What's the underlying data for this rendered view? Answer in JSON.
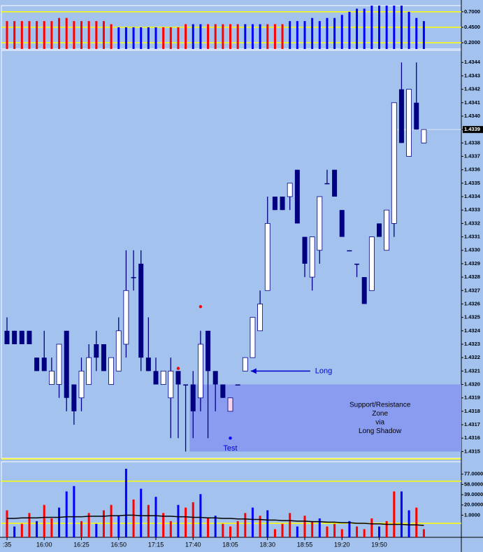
{
  "chart_data": [
    {
      "type": "bar",
      "ylim": [
        0.1,
        0.8
      ],
      "yticks": [
        {
          "value": 0.7,
          "label": "0.7000"
        },
        {
          "value": 0.45,
          "label": "0.4500"
        },
        {
          "value": 0.2,
          "label": "0.2000"
        }
      ],
      "grid_color": "#ffff00",
      "values": [
        0.55,
        0.55,
        0.55,
        0.55,
        0.55,
        0.55,
        0.55,
        0.6,
        0.6,
        0.55,
        0.55,
        0.55,
        0.55,
        0.55,
        0.5,
        0.45,
        0.45,
        0.45,
        0.45,
        0.45,
        0.45,
        0.45,
        0.45,
        0.45,
        0.5,
        0.5,
        0.5,
        0.5,
        0.5,
        0.5,
        0.5,
        0.5,
        0.5,
        0.5,
        0.5,
        0.5,
        0.5,
        0.5,
        0.55,
        0.55,
        0.55,
        0.6,
        0.55,
        0.6,
        0.6,
        0.65,
        0.7,
        0.75,
        0.75,
        0.8,
        0.8,
        0.8,
        0.8,
        0.8,
        0.7,
        0.6,
        0.55
      ],
      "colors": [
        "#ff0000",
        "#ff0000",
        "#ff0000",
        "#ff0000",
        "#ff0000",
        "#ff0000",
        "#ff0000",
        "#ff0000",
        "#ff0000",
        "#ff0000",
        "#ff0000",
        "#ff0000",
        "#ff0000",
        "#ff0000",
        "#ff0000",
        "#0000ff",
        "#0000ff",
        "#0000ff",
        "#0000ff",
        "#0000ff",
        "#0000ff",
        "#ff0000",
        "#ff0000",
        "#ff0000",
        "#ff0000",
        "#0000ff",
        "#0000ff",
        "#ff0000",
        "#ff0000",
        "#ff0000",
        "#ff0000",
        "#ff0000",
        "#0000ff",
        "#0000ff",
        "#0000ff",
        "#ff0000",
        "#ff0000",
        "#ff0000",
        "#0000ff",
        "#0000ff",
        "#0000ff",
        "#0000ff",
        "#0000ff",
        "#0000ff",
        "#0000ff",
        "#0000ff",
        "#0000ff",
        "#0000ff",
        "#0000ff",
        "#0000ff",
        "#0000ff",
        "#0000ff",
        "#0000ff",
        "#0000ff",
        "#0000ff",
        "#0000ff",
        "#0000ff"
      ]
    },
    {
      "type": "candlestick",
      "ylim": [
        1.43145,
        1.43449
      ],
      "yticks": [
        1.4344,
        1.4343,
        1.4342,
        1.4341,
        {
          "value": 1.434,
          "label": "1.4340"
        },
        1.4339,
        1.4338,
        1.4337,
        1.4336,
        1.4335,
        1.4334,
        1.4333,
        1.4332,
        1.4331,
        {
          "value": 1.433,
          "label": "1.4330"
        },
        1.4329,
        1.4328,
        1.4327,
        1.4326,
        1.4325,
        1.4324,
        1.4323,
        1.4322,
        1.4321,
        {
          "value": 1.432,
          "label": "1.4320"
        },
        1.4319,
        1.4318,
        1.4317,
        1.4316,
        1.4315
      ],
      "last_price": 1.4339,
      "up_color": "#ffffff",
      "down_color": "#000080",
      "categories": [
        ":35",
        null,
        null,
        null,
        null,
        "16:00",
        null,
        null,
        null,
        null,
        "16:25",
        null,
        null,
        null,
        null,
        "16:50",
        null,
        null,
        null,
        null,
        "17:15",
        null,
        null,
        null,
        null,
        "17:40",
        null,
        null,
        null,
        null,
        "18:05",
        null,
        null,
        null,
        null,
        "18:30",
        null,
        null,
        null,
        null,
        "18:55",
        null,
        null,
        null,
        null,
        "19:20",
        null,
        null,
        null,
        null,
        "19:50",
        null,
        null,
        null,
        null,
        null,
        null
      ],
      "open": [
        1.4324,
        1.4324,
        1.4324,
        1.4324,
        1.4322,
        1.4322,
        1.432,
        1.432,
        1.4324,
        1.432,
        1.4319,
        1.432,
        1.4323,
        1.4323,
        1.432,
        1.4321,
        1.4323,
        1.4328,
        1.4329,
        1.4322,
        1.4321,
        1.432,
        1.4319,
        1.4321,
        1.432,
        1.432,
        1.4319,
        1.4324,
        1.4321,
        1.432,
        1.4318,
        1.432,
        1.4321,
        1.4322,
        1.4324,
        1.4327,
        1.4334,
        1.4334,
        1.4334,
        1.4336,
        1.4331,
        1.4328,
        1.433,
        1.4335,
        1.4336,
        1.4333,
        1.433,
        1.4329,
        1.4328,
        1.4327,
        1.4332,
        1.433,
        1.4332,
        1.4342,
        1.4337,
        1.4341,
        1.4338
      ],
      "high": [
        1.4325,
        1.4324,
        1.4324,
        1.4324,
        1.4322,
        1.4324,
        1.4322,
        1.4323,
        1.4324,
        1.432,
        1.4322,
        1.4323,
        1.4324,
        1.4323,
        1.4322,
        1.4325,
        1.433,
        1.433,
        1.433,
        1.4325,
        1.4322,
        1.4321,
        1.4322,
        1.4321,
        1.432,
        1.4321,
        1.4324,
        1.4324,
        1.4321,
        1.432,
        1.4319,
        1.432,
        1.4322,
        1.4325,
        1.4327,
        1.4334,
        1.4334,
        1.4334,
        1.4335,
        1.4336,
        1.4331,
        1.4331,
        1.4334,
        1.4336,
        1.4336,
        1.4333,
        1.433,
        1.4329,
        1.4328,
        1.4331,
        1.4332,
        1.4333,
        1.4341,
        1.4344,
        1.4342,
        1.4344,
        1.4339
      ],
      "low": [
        1.4323,
        1.4323,
        1.4323,
        1.4323,
        1.4321,
        1.4321,
        1.432,
        1.4319,
        1.4318,
        1.4317,
        1.4318,
        1.432,
        1.4321,
        1.4321,
        1.432,
        1.4321,
        1.4322,
        1.4327,
        1.4321,
        1.4321,
        1.432,
        1.432,
        1.4316,
        1.4316,
        1.4315,
        1.4316,
        1.4318,
        1.4316,
        1.4318,
        1.4319,
        1.4318,
        1.432,
        1.4321,
        1.4322,
        1.4324,
        1.4327,
        1.4333,
        1.4333,
        1.4333,
        1.4332,
        1.4328,
        1.4327,
        1.4329,
        1.4335,
        1.4334,
        1.4331,
        1.433,
        1.4328,
        1.4326,
        1.4327,
        1.4331,
        1.433,
        1.4331,
        1.4338,
        1.4337,
        1.4339,
        1.4338
      ],
      "close": [
        1.4323,
        1.4323,
        1.4323,
        1.4323,
        1.4321,
        1.4321,
        1.4321,
        1.4323,
        1.4319,
        1.4318,
        1.4321,
        1.4322,
        1.4322,
        1.4321,
        1.4322,
        1.4324,
        1.4327,
        1.4328,
        1.4322,
        1.4321,
        1.432,
        1.4321,
        1.4321,
        1.432,
        1.432,
        1.4318,
        1.4323,
        1.4321,
        1.432,
        1.4319,
        1.4319,
        1.432,
        1.4322,
        1.4325,
        1.4326,
        1.4332,
        1.4333,
        1.4333,
        1.4335,
        1.4332,
        1.4329,
        1.4331,
        1.4334,
        1.4335,
        1.4334,
        1.4331,
        1.433,
        1.4329,
        1.4326,
        1.4331,
        1.4331,
        1.4333,
        1.4341,
        1.4338,
        1.4342,
        1.4339,
        1.4339
      ],
      "markers": [
        {
          "index": 23,
          "value": 1.43212,
          "color": "#ff0000"
        },
        {
          "index": 26,
          "value": 1.43258,
          "color": "#ff0000"
        },
        {
          "index": 30,
          "value": 1.4316,
          "color": "#0000ff"
        }
      ],
      "long": {
        "text": "Long",
        "index": 32,
        "value": 1.4321
      },
      "test": {
        "text": "Test",
        "index": 30,
        "value": 1.4316
      },
      "zone": {
        "lines": [
          "Support/Resistance",
          "Zone",
          "via",
          "Long Shadow"
        ],
        "from_index": 25,
        "range": [
          1.4315,
          1.432
        ]
      }
    },
    {
      "type": "bar",
      "ylim": [
        -40,
        100
      ],
      "yticks": [
        {
          "value": 77,
          "label": "77.0000"
        },
        {
          "value": 58,
          "label": "58.0000"
        },
        {
          "value": 39,
          "label": "39.0000"
        },
        {
          "value": 20,
          "label": "20.0000"
        },
        {
          "value": 1,
          "label": "1.0000"
        }
      ],
      "levels": [
        64,
        -14
      ],
      "level_color": "#ffff00",
      "values": [
        10,
        -20,
        -15,
        5,
        -10,
        20,
        -5,
        15,
        45,
        55,
        -10,
        5,
        -15,
        10,
        20,
        0,
        87,
        30,
        50,
        20,
        35,
        5,
        -10,
        20,
        15,
        25,
        40,
        -5,
        0,
        -15,
        -20,
        -10,
        5,
        15,
        0,
        10,
        -25,
        -15,
        5,
        -20,
        0,
        -10,
        -5,
        -20,
        -15,
        -25,
        -10,
        -20,
        -25,
        -5,
        -20,
        -10,
        45,
        45,
        10,
        15,
        -25
      ],
      "colors": [
        "#ff0000",
        "#0000ff",
        "#ff0000",
        "#ff0000",
        "#0000ff",
        "#ff0000",
        "#ff0000",
        "#0000ff",
        "#0000ff",
        "#0000ff",
        "#ff0000",
        "#ff0000",
        "#0000ff",
        "#ff0000",
        "#ff0000",
        "#0000ff",
        "#0000ff",
        "#ff0000",
        "#0000ff",
        "#ff0000",
        "#0000ff",
        "#ff0000",
        "#ff0000",
        "#0000ff",
        "#ff0000",
        "#ff0000",
        "#0000ff",
        "#ff0000",
        "#0000ff",
        "#ff0000",
        "#ff0000",
        "#ff0000",
        "#ff0000",
        "#0000ff",
        "#ff0000",
        "#0000ff",
        "#ff0000",
        "#ff0000",
        "#ff0000",
        "#0000ff",
        "#ff0000",
        "#ff0000",
        "#0000ff",
        "#ff0000",
        "#ff0000",
        "#ff0000",
        "#0000ff",
        "#ff0000",
        "#ff0000",
        "#ff0000",
        "#0000ff",
        "#ff0000",
        "#ff0000",
        "#0000ff",
        "#0000ff",
        "#ff0000",
        "#ff0000"
      ],
      "line": {
        "color": "#000000",
        "values": [
          -5,
          -5,
          -4,
          -4,
          -4,
          -3,
          -3,
          -3,
          -2,
          -2,
          -2,
          -1,
          -1,
          -1,
          0,
          0,
          1,
          1,
          0,
          0,
          0,
          -1,
          -1,
          -2,
          -2,
          -3,
          -3,
          -4,
          -4,
          -5,
          -5,
          -6,
          -6,
          -7,
          -7,
          -8,
          -8,
          -9,
          -9,
          -10,
          -10,
          -11,
          -11,
          -12,
          -12,
          -13,
          -13,
          -14,
          -14,
          -15,
          -15,
          -16,
          -16,
          -16,
          -17,
          -17,
          -18
        ]
      }
    }
  ]
}
